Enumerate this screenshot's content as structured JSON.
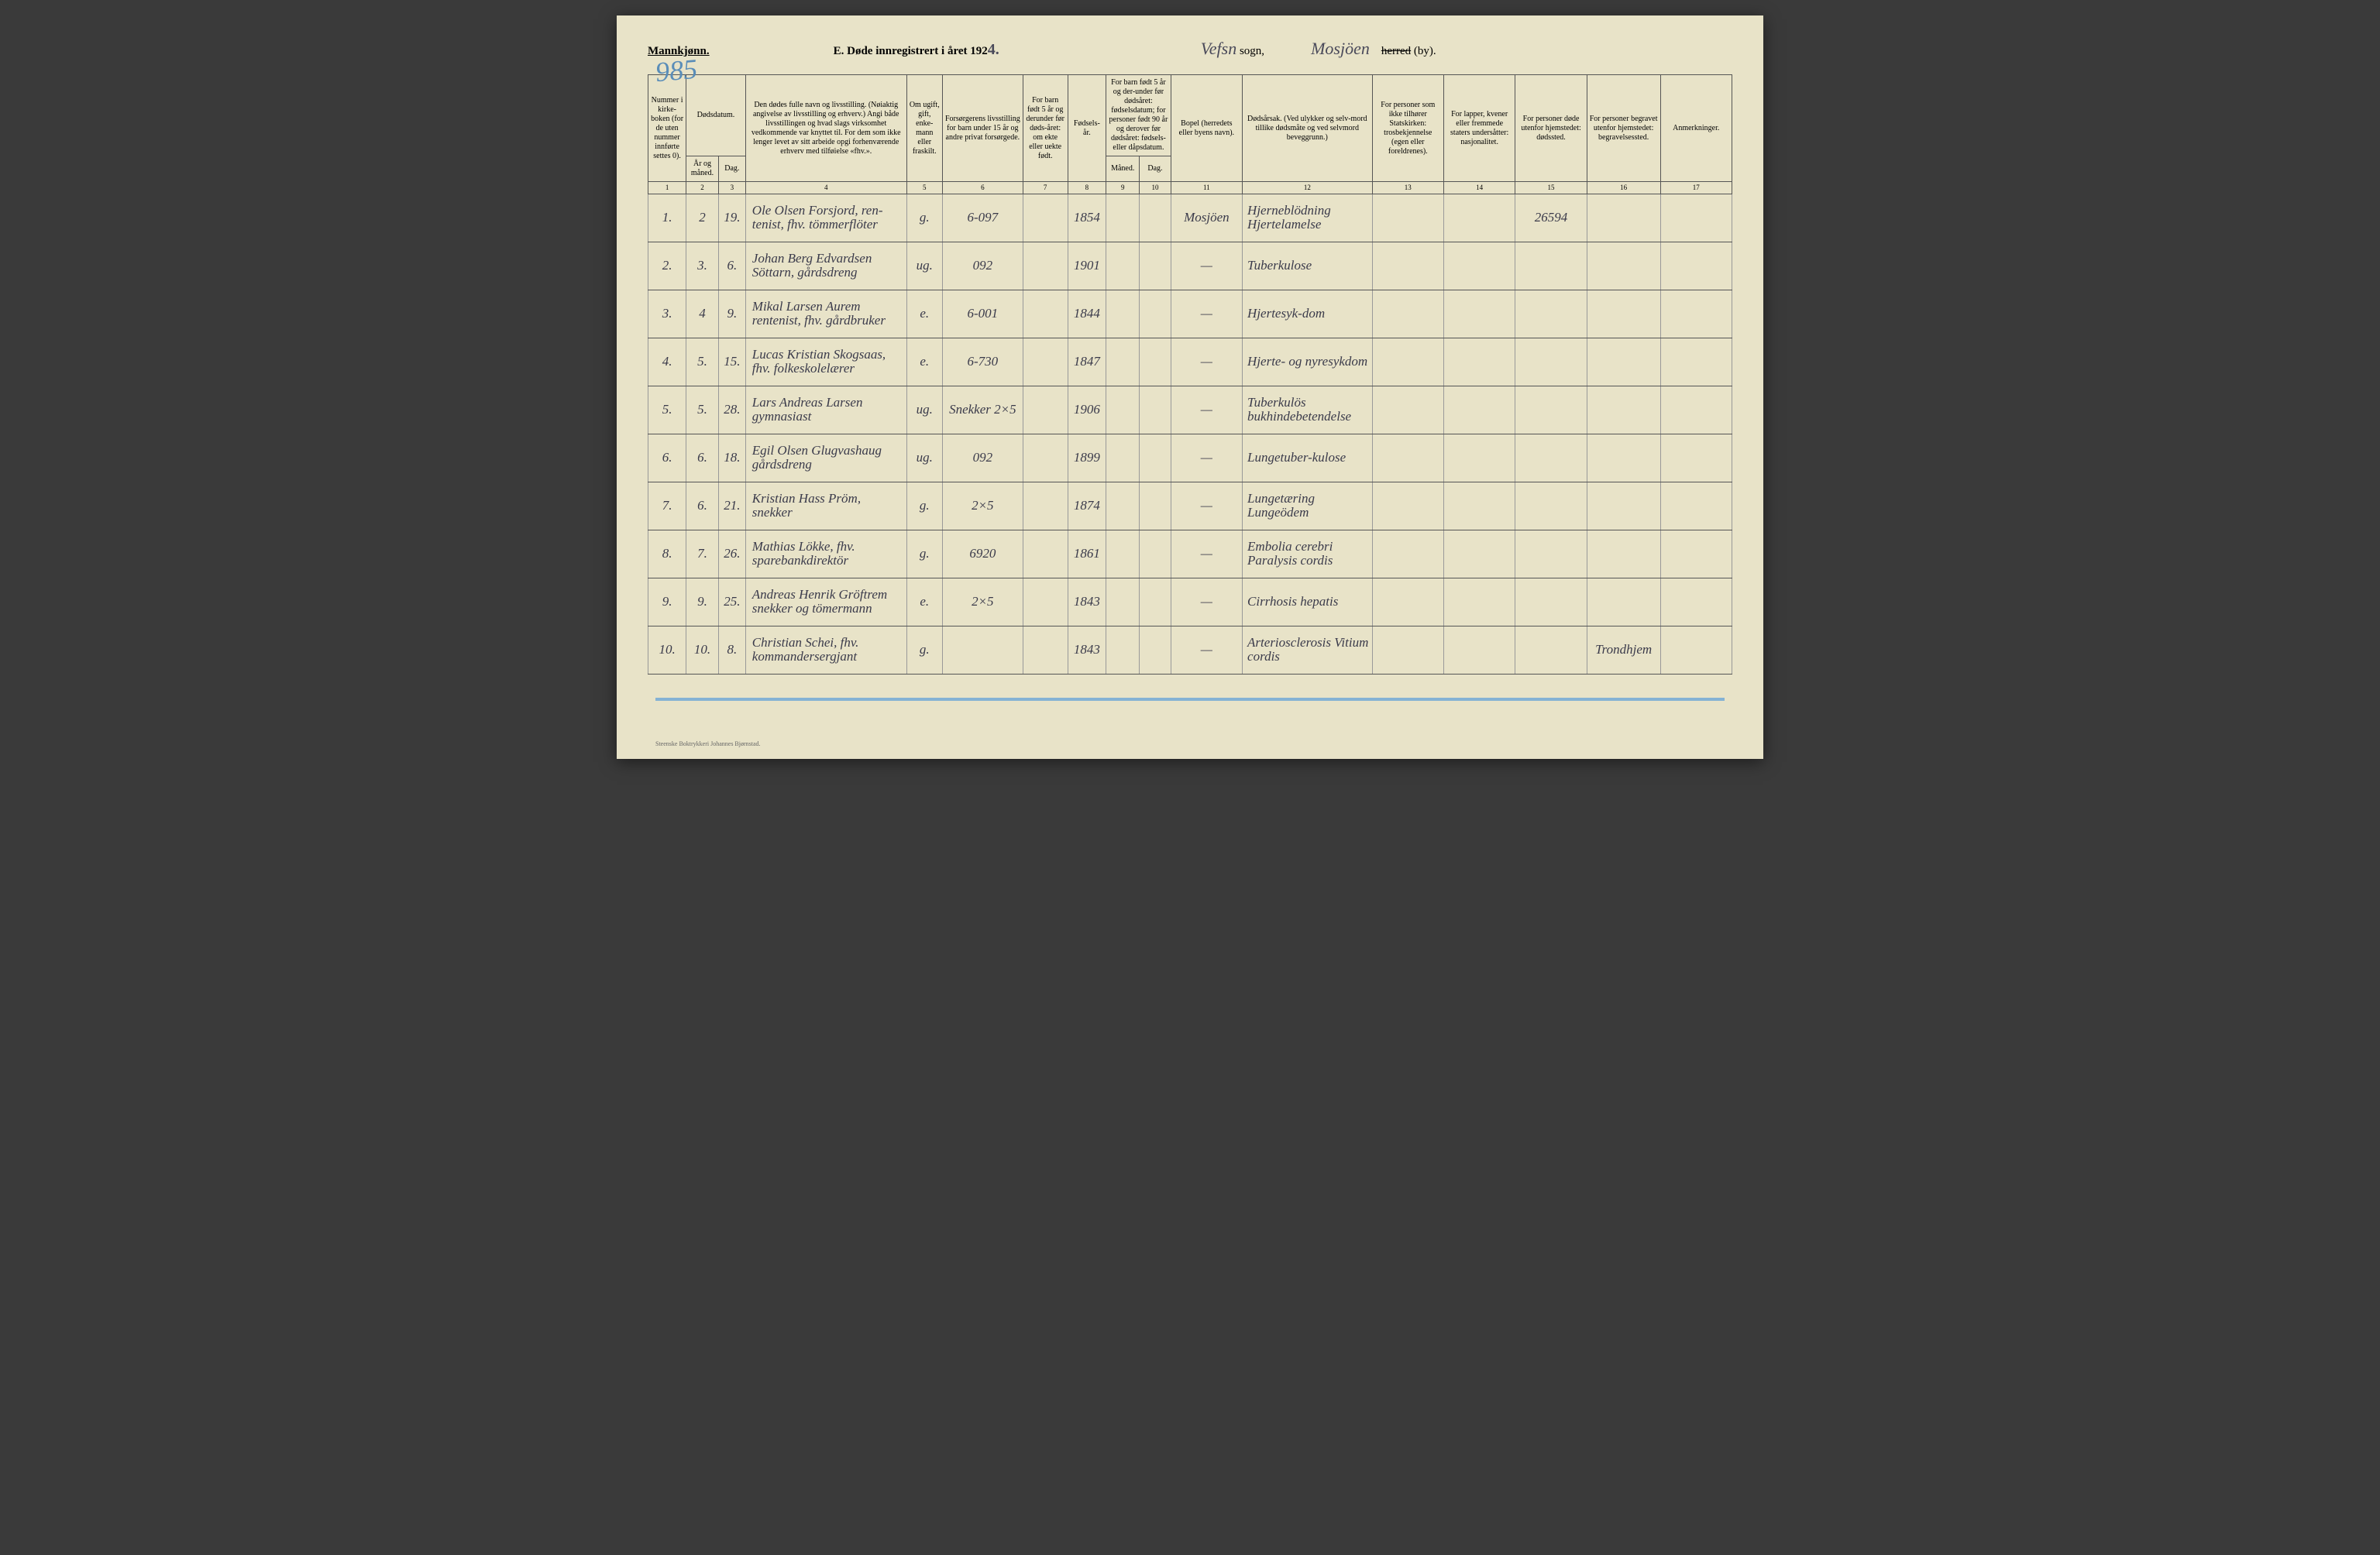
{
  "header": {
    "gender": "Mannkjønn.",
    "title_prefix": "E.  Døde innregistrert i året 192",
    "year_suffix": "4.",
    "sogn_hw": "Vefsn",
    "sogn_label": "sogn,",
    "by_hw": "Mosjöen",
    "herred_struck": "herred",
    "by_label": "(by).",
    "blue_stamp": "985"
  },
  "columns": {
    "c1": "Nummer i kirke-boken (for de uten nummer innførte settes 0).",
    "c2_top": "Dødsdatum.",
    "c2a": "År og måned.",
    "c2b": "Dag.",
    "c4": "Den dødes fulle navn og livsstilling. (Nøiaktig angivelse av livsstilling og erhverv.) Angi både livsstillingen og hvad slags virksomhet vedkommende var knyttet til. For dem som ikke lenger levet av sitt arbeide opgi forhenværende erhverv med tilføielse «fhv.».",
    "c5": "Om ugift, gift, enke-mann eller fraskilt.",
    "c6": "Forsørgerens livsstilling for barn under 15 år og andre privat forsørgede.",
    "c7": "For barn født 5 år og derunder før døds-året: om ekte eller uekte født.",
    "c8": "Fødsels-år.",
    "c9_top": "For barn født 5 år og der-under før dødsåret: fødselsdatum; for personer født 90 år og derover før dødsåret: fødsels- eller dåpsdatum.",
    "c9a": "Måned.",
    "c9b": "Dag.",
    "c11": "Bopel (herredets eller byens navn).",
    "c12": "Dødsårsak. (Ved ulykker og selv-mord tillike dødsmåte og ved selvmord beveggrunn.)",
    "c13": "For personer som ikke tilhører Statskirken: trosbekjennelse (egen eller foreldrenes).",
    "c14": "For lapper, kvener eller fremmede staters undersåtter: nasjonalitet.",
    "c15": "For personer døde utenfor hjemstedet: dødssted.",
    "c16": "For personer begravet utenfor hjemstedet: begravelsessted.",
    "c17": "Anmerkninger."
  },
  "col_nums": [
    "1",
    "2",
    "3",
    "4",
    "5",
    "6",
    "7",
    "8",
    "9",
    "10",
    "11",
    "12",
    "13",
    "14",
    "15",
    "16",
    "17"
  ],
  "rows": [
    {
      "n": "1.",
      "mo": "2",
      "d": "19.",
      "name": "Ole Olsen Forsjord, ren-tenist, fhv. tömmerflöter",
      "ms": "g.",
      "fors": "6-097",
      "c7": "",
      "fy": "1854",
      "m9": "",
      "d10": "",
      "bopel": "Mosjöen",
      "cause": "Hjerneblödning Hjertelamelse",
      "c13": "",
      "c14": "",
      "c15": "26594",
      "c16": "",
      "c17": ""
    },
    {
      "n": "2.",
      "mo": "3.",
      "d": "6.",
      "name": "Johan Berg Edvardsen Söttarn, gårdsdreng",
      "ms": "ug.",
      "fors": "092",
      "c7": "",
      "fy": "1901",
      "m9": "",
      "d10": "",
      "bopel": "—",
      "cause": "Tuberkulose",
      "c13": "",
      "c14": "",
      "c15": "",
      "c16": "",
      "c17": ""
    },
    {
      "n": "3.",
      "mo": "4",
      "d": "9.",
      "name": "Mikal Larsen Aurem rentenist, fhv. gårdbruker",
      "ms": "e.",
      "fors": "6-001",
      "c7": "",
      "fy": "1844",
      "m9": "",
      "d10": "",
      "bopel": "—",
      "cause": "Hjertesyk-dom",
      "c13": "",
      "c14": "",
      "c15": "",
      "c16": "",
      "c17": ""
    },
    {
      "n": "4.",
      "mo": "5.",
      "d": "15.",
      "name": "Lucas Kristian Skogsaas, fhv. folkeskolelærer",
      "ms": "e.",
      "fors": "6-730",
      "c7": "",
      "fy": "1847",
      "m9": "",
      "d10": "",
      "bopel": "—",
      "cause": "Hjerte- og nyresykdom",
      "c13": "",
      "c14": "",
      "c15": "",
      "c16": "",
      "c17": ""
    },
    {
      "n": "5.",
      "mo": "5.",
      "d": "28.",
      "name": "Lars Andreas Larsen gymnasiast",
      "ms": "ug.",
      "fors": "Snekker 2×5",
      "c7": "",
      "fy": "1906",
      "m9": "",
      "d10": "",
      "bopel": "—",
      "cause": "Tuberkulös bukhindebetendelse",
      "c13": "",
      "c14": "",
      "c15": "",
      "c16": "",
      "c17": ""
    },
    {
      "n": "6.",
      "mo": "6.",
      "d": "18.",
      "name": "Egil Olsen Glugvashaug gårdsdreng",
      "ms": "ug.",
      "fors": "092",
      "c7": "",
      "fy": "1899",
      "m9": "",
      "d10": "",
      "bopel": "—",
      "cause": "Lungetuber-kulose",
      "c13": "",
      "c14": "",
      "c15": "",
      "c16": "",
      "c17": ""
    },
    {
      "n": "7.",
      "mo": "6.",
      "d": "21.",
      "name": "Kristian Hass Pröm, snekker",
      "ms": "g.",
      "fors": "2×5",
      "c7": "",
      "fy": "1874",
      "m9": "",
      "d10": "",
      "bopel": "—",
      "cause": "Lungetæring Lungeödem",
      "c13": "",
      "c14": "",
      "c15": "",
      "c16": "",
      "c17": ""
    },
    {
      "n": "8.",
      "mo": "7.",
      "d": "26.",
      "name": "Mathias Lökke, fhv. sparebankdirektör",
      "ms": "g.",
      "fors": "6920",
      "c7": "",
      "fy": "1861",
      "m9": "",
      "d10": "",
      "bopel": "—",
      "cause": "Embolia cerebri Paralysis cordis",
      "c13": "",
      "c14": "",
      "c15": "",
      "c16": "",
      "c17": ""
    },
    {
      "n": "9.",
      "mo": "9.",
      "d": "25.",
      "name": "Andreas Henrik Gröftrem snekker og tömermann",
      "ms": "e.",
      "fors": "2×5",
      "c7": "",
      "fy": "1843",
      "m9": "",
      "d10": "",
      "bopel": "—",
      "cause": "Cirrhosis hepatis",
      "c13": "",
      "c14": "",
      "c15": "",
      "c16": "",
      "c17": ""
    },
    {
      "n": "10.",
      "mo": "10.",
      "d": "8.",
      "name": "Christian Schei, fhv. kommandersergjant",
      "ms": "g.",
      "fors": "",
      "c7": "",
      "fy": "1843",
      "m9": "",
      "d10": "",
      "bopel": "—",
      "cause": "Arteriosclerosis Vitium cordis",
      "c13": "",
      "c14": "",
      "c15": "",
      "c16": "Trondhjem",
      "c17": ""
    }
  ],
  "footer": "Steenske Boktrykkeri Johannes Bjørnstad."
}
